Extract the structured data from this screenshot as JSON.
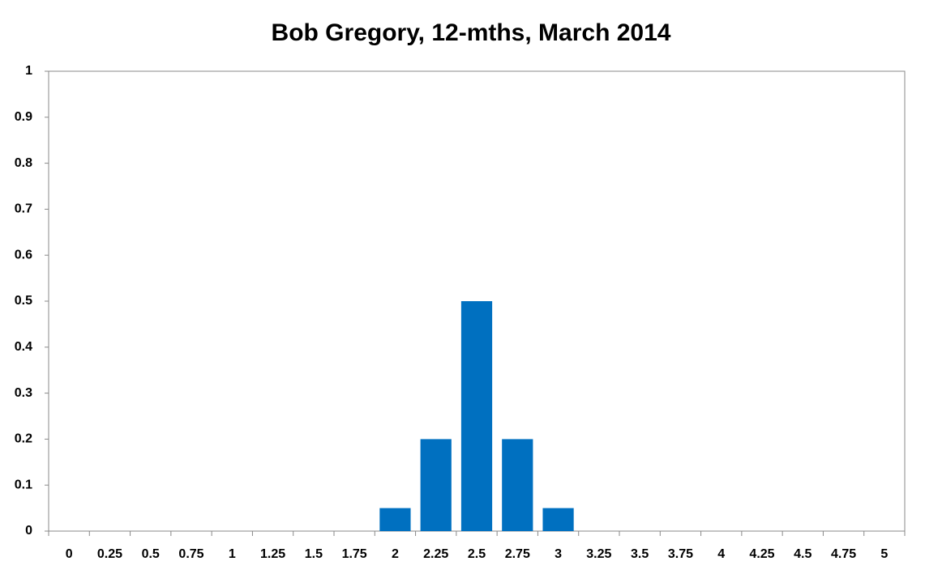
{
  "chart_data": {
    "type": "bar",
    "title": "Bob Gregory, 12-mths, March 2014",
    "categories": [
      "0",
      "0.25",
      "0.5",
      "0.75",
      "1",
      "1.25",
      "1.5",
      "1.75",
      "2",
      "2.25",
      "2.5",
      "2.75",
      "3",
      "3.25",
      "3.5",
      "3.75",
      "4",
      "4.25",
      "4.5",
      "4.75",
      "5"
    ],
    "values": [
      0,
      0,
      0,
      0,
      0,
      0,
      0,
      0,
      0.05,
      0.2,
      0.5,
      0.2,
      0.05,
      0,
      0,
      0,
      0,
      0,
      0,
      0,
      0
    ],
    "color": "#0070c0",
    "ylim": [
      0,
      1
    ],
    "yticks": [
      0,
      0.1,
      0.2,
      0.3,
      0.4,
      0.5,
      0.6,
      0.7,
      0.8,
      0.9,
      1
    ],
    "grid": false
  }
}
